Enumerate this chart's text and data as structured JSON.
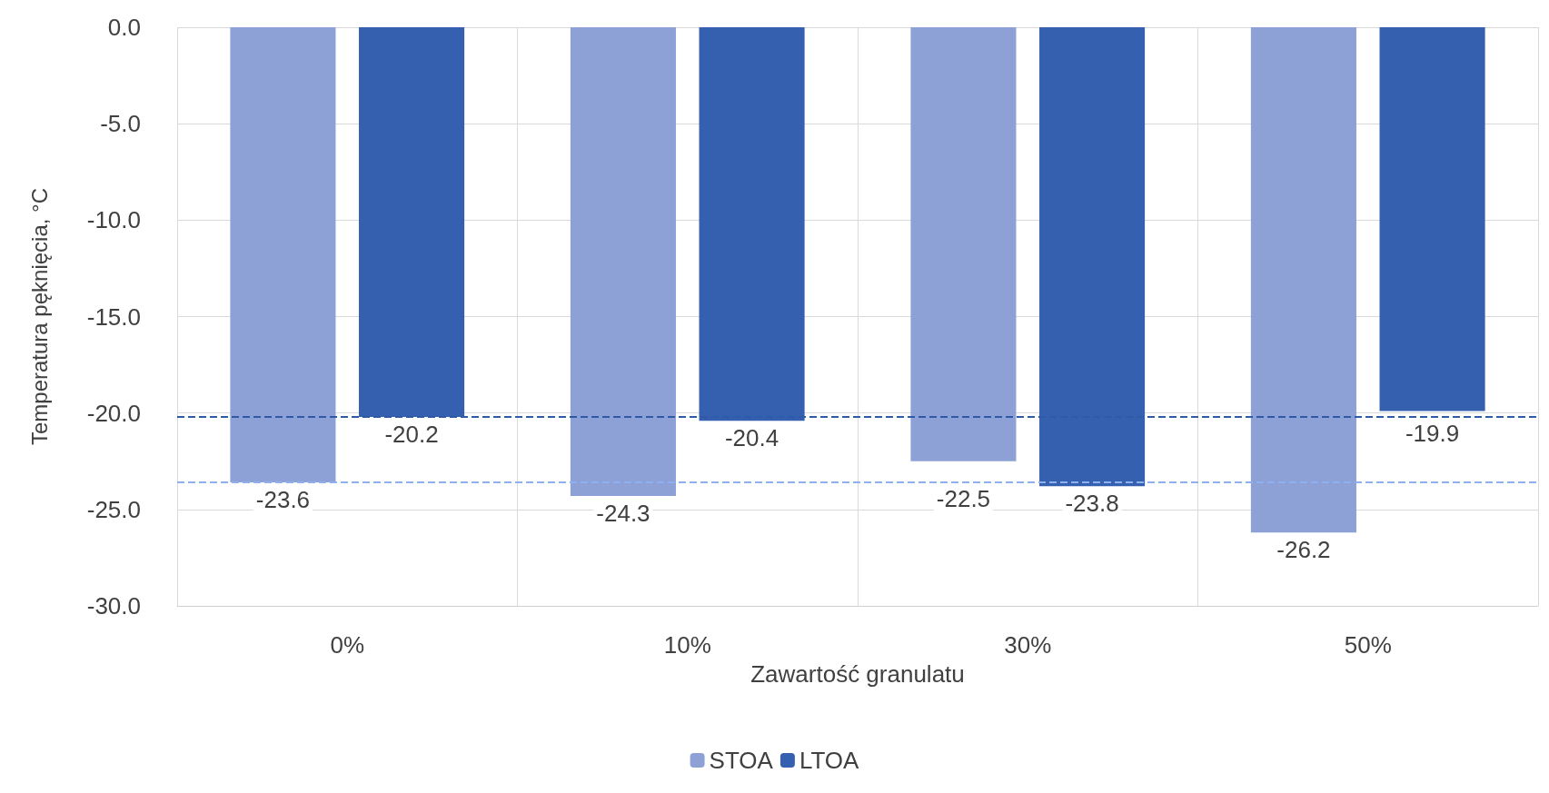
{
  "chart_data": {
    "type": "bar",
    "xlabel": "Zawartość granulatu",
    "ylabel": "Temperatura pęknięcia, °C",
    "categories": [
      "0%",
      "10%",
      "30%",
      "50%"
    ],
    "series": [
      {
        "name": "STOA",
        "color": "#8ea1d6",
        "values": [
          -23.6,
          -24.3,
          -22.5,
          -26.2
        ]
      },
      {
        "name": "LTOA",
        "color": "#3560b0",
        "values": [
          -20.2,
          -20.4,
          -23.8,
          -19.9
        ]
      }
    ],
    "ylim": [
      -30,
      0
    ],
    "yticks": [
      {
        "value": -30,
        "label": "-30.0"
      },
      {
        "value": -25,
        "label": "-25.0"
      },
      {
        "value": -20,
        "label": "-20.0"
      },
      {
        "value": -15,
        "label": "-15.0"
      },
      {
        "value": -10,
        "label": "-10.0"
      },
      {
        "value": -5,
        "label": "-5.0"
      },
      {
        "value": 0,
        "label": "0.0"
      }
    ],
    "ref_lines": [
      {
        "axis": "y",
        "value": -23.6,
        "color": "#8fb0f0",
        "line_style": "dashed"
      },
      {
        "axis": "y",
        "value": -20.2,
        "color": "#2f5aa8",
        "line_style": "dashed"
      }
    ],
    "data_labels": true,
    "grid": true,
    "legend": "bottom"
  }
}
